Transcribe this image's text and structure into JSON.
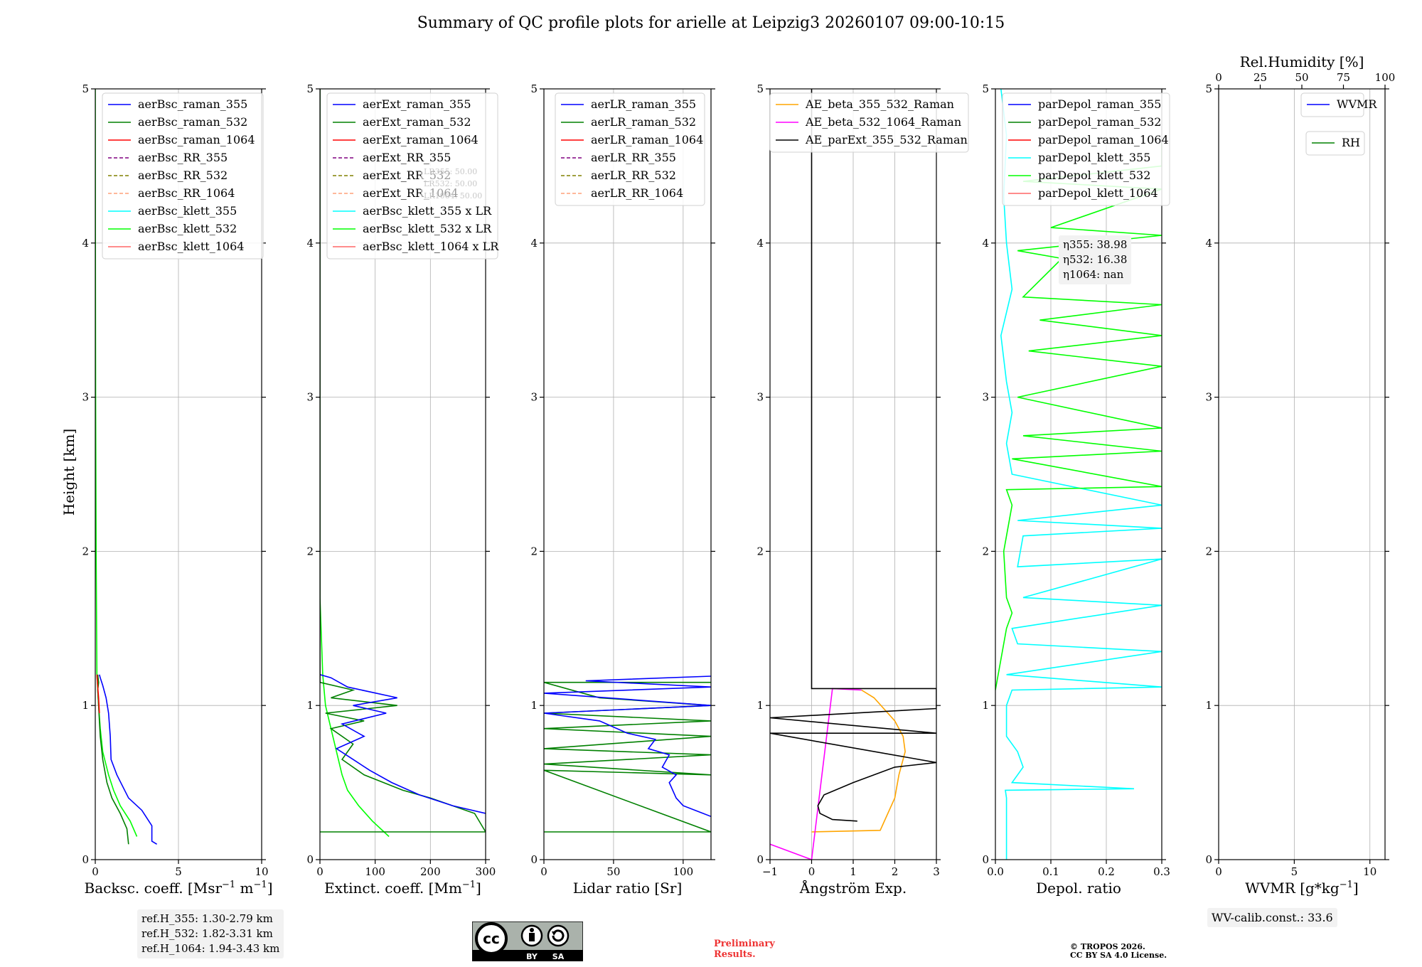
{
  "title": "Summary of QC profile plots for arielle at Leipzig3 20260107 09:00-10:15",
  "ylabel": "Height [km]",
  "chart_data": [
    {
      "id": "bsc",
      "type": "line",
      "xlabel_pre": "Backsc. coeff. [Msr",
      "xlabel_sup1": "−1",
      "xlabel_mid": " m",
      "xlabel_sup2": "−1",
      "xlabel_post": "]",
      "xlim": [
        0,
        10
      ],
      "ylim": [
        0,
        5
      ],
      "xticks": [
        0,
        5,
        10
      ],
      "yticks": [
        0,
        1,
        2,
        3,
        4,
        5
      ],
      "legend": [
        {
          "label": "aerBsc_raman_355",
          "color": "#0000ff",
          "dash": false
        },
        {
          "label": "aerBsc_raman_532",
          "color": "#008000",
          "dash": false
        },
        {
          "label": "aerBsc_raman_1064",
          "color": "#ff0000",
          "dash": false
        },
        {
          "label": "aerBsc_RR_355",
          "color": "#800080",
          "dash": true
        },
        {
          "label": "aerBsc_RR_532",
          "color": "#808000",
          "dash": true
        },
        {
          "label": "aerBsc_RR_1064",
          "color": "#ffa07a",
          "dash": true
        },
        {
          "label": "aerBsc_klett_355",
          "color": "#00ffff",
          "dash": false
        },
        {
          "label": "aerBsc_klett_532",
          "color": "#00ff00",
          "dash": false
        },
        {
          "label": "aerBsc_klett_1064",
          "color": "#ff6666",
          "dash": false
        }
      ],
      "series": [
        {
          "name": "aerBsc_klett_532",
          "color": "#00ff00",
          "x": [
            2.5,
            2.1,
            1.5,
            1.1,
            0.8,
            0.45,
            0.3,
            0.2,
            0.1,
            0.05,
            0.02,
            0.01,
            0.0
          ],
          "y": [
            0.15,
            0.25,
            0.35,
            0.45,
            0.55,
            0.7,
            0.85,
            1.0,
            1.2,
            2.0,
            3.0,
            4.0,
            5.0
          ]
        },
        {
          "name": "aerBsc_raman_532",
          "color": "#008000",
          "x": [
            2.0,
            1.9,
            1.5,
            1.0,
            0.7,
            0.45,
            0.3,
            0.25,
            0.2,
            0.15,
            0.2,
            0.15
          ],
          "y": [
            0.1,
            0.2,
            0.3,
            0.4,
            0.5,
            0.65,
            0.8,
            0.9,
            1.0,
            1.1,
            1.15,
            1.2
          ]
        },
        {
          "name": "aerBsc_raman_355",
          "color": "#0000ff",
          "x": [
            3.7,
            3.4,
            3.4,
            2.8,
            2.0,
            1.3,
            0.95,
            0.9,
            0.8,
            0.65,
            0.45,
            0.3,
            0.25
          ],
          "y": [
            0.1,
            0.12,
            0.22,
            0.32,
            0.4,
            0.55,
            0.65,
            0.8,
            0.95,
            1.05,
            1.13,
            1.18,
            1.2
          ]
        },
        {
          "name": "aerBsc_raman_1064",
          "color": "#ff0000",
          "x": [
            0.25,
            0.2,
            0.15,
            0.1
          ],
          "y": [
            0.95,
            1.05,
            1.12,
            1.2
          ]
        }
      ],
      "info": [
        "ref.H_355: 1.30-2.79 km",
        "ref.H_532: 1.82-3.31 km",
        "ref.H_1064: 1.94-3.43 km"
      ]
    },
    {
      "id": "ext",
      "type": "line",
      "xlabel_pre": "Extinct. coeff. [Mm",
      "xlabel_sup1": "−1",
      "xlabel_mid": "",
      "xlabel_sup2": "",
      "xlabel_post": "]",
      "xlim": [
        0,
        300
      ],
      "ylim": [
        0,
        5
      ],
      "xticks": [
        0,
        100,
        200,
        300
      ],
      "yticks": [
        0,
        1,
        2,
        3,
        4,
        5
      ],
      "legend": [
        {
          "label": "aerExt_raman_355",
          "color": "#0000ff",
          "dash": false
        },
        {
          "label": "aerExt_raman_532",
          "color": "#008000",
          "dash": false
        },
        {
          "label": "aerExt_raman_1064",
          "color": "#ff0000",
          "dash": false
        },
        {
          "label": "aerExt_RR_355",
          "color": "#800080",
          "dash": true
        },
        {
          "label": "aerExt_RR_532",
          "color": "#808000",
          "dash": true
        },
        {
          "label": "aerExt_RR_1064",
          "color": "#ffa07a",
          "dash": true
        },
        {
          "label": "aerBsc_klett_355 x LR",
          "color": "#00ffff",
          "dash": false
        },
        {
          "label": "aerBsc_klett_532 x LR",
          "color": "#00ff00",
          "dash": false
        },
        {
          "label": "aerBsc_klett_1064 x LR",
          "color": "#ff6666",
          "dash": false
        }
      ],
      "series": [
        {
          "name": "aerBsc_klett_532 x LR",
          "color": "#00ff00",
          "x": [
            125,
            95,
            70,
            50,
            40,
            30,
            20,
            10,
            5,
            2,
            0,
            0
          ],
          "y": [
            0.15,
            0.25,
            0.35,
            0.45,
            0.55,
            0.7,
            0.85,
            1.0,
            1.2,
            1.5,
            1.7,
            5.0
          ]
        },
        {
          "name": "aerExt_raman_532",
          "color": "#008000",
          "x": [
            0,
            300,
            280,
            200,
            150,
            80,
            40,
            60,
            20,
            80,
            10,
            140,
            20,
            60,
            0
          ],
          "y": [
            0.18,
            0.18,
            0.3,
            0.4,
            0.45,
            0.55,
            0.65,
            0.75,
            0.85,
            0.9,
            0.95,
            1.0,
            1.05,
            1.1,
            1.15
          ]
        },
        {
          "name": "aerExt_raman_355",
          "color": "#0000ff",
          "x": [
            300,
            240,
            180,
            130,
            90,
            60,
            30,
            80,
            40,
            120,
            60,
            140,
            50,
            20,
            0
          ],
          "y": [
            0.3,
            0.35,
            0.42,
            0.5,
            0.58,
            0.65,
            0.72,
            0.8,
            0.88,
            0.95,
            1.0,
            1.05,
            1.12,
            1.18,
            1.2
          ]
        },
        {
          "name": "aerExt_raman_1064",
          "color": "#000000",
          "x": [
            0,
            0
          ],
          "y": [
            1.15,
            5.0
          ]
        }
      ],
      "info": [
        "LR355: 50.00",
        "LR532: 50.00",
        "LR1064: 50.00"
      ]
    },
    {
      "id": "lr",
      "type": "line",
      "xlabel_pre": "Lidar ratio [Sr]",
      "xlabel_sup1": "",
      "xlabel_mid": "",
      "xlabel_sup2": "",
      "xlabel_post": "",
      "xlim": [
        0,
        120
      ],
      "ylim": [
        0,
        5
      ],
      "xticks": [
        0,
        50,
        100
      ],
      "yticks": [
        0,
        1,
        2,
        3,
        4,
        5
      ],
      "legend": [
        {
          "label": "aerLR_raman_355",
          "color": "#0000ff",
          "dash": false
        },
        {
          "label": "aerLR_raman_532",
          "color": "#008000",
          "dash": false
        },
        {
          "label": "aerLR_raman_1064",
          "color": "#ff0000",
          "dash": false
        },
        {
          "label": "aerLR_RR_355",
          "color": "#800080",
          "dash": true
        },
        {
          "label": "aerLR_RR_532",
          "color": "#808000",
          "dash": true
        },
        {
          "label": "aerLR_RR_1064",
          "color": "#ffa07a",
          "dash": true
        }
      ],
      "series": [
        {
          "name": "aerLR_raman_532",
          "color": "#008000",
          "x": [
            0,
            120,
            0,
            120,
            0,
            120,
            0,
            120,
            0,
            120,
            0,
            120,
            40,
            0,
            120
          ],
          "y": [
            0.18,
            0.18,
            0.58,
            0.55,
            0.62,
            0.68,
            0.72,
            0.8,
            0.85,
            0.9,
            0.95,
            1.0,
            1.05,
            1.15,
            1.15
          ]
        },
        {
          "name": "aerLR_raman_355",
          "color": "#0000ff",
          "x": [
            120,
            100,
            95,
            90,
            95,
            85,
            90,
            75,
            80,
            60,
            40,
            0,
            120,
            0,
            120,
            30,
            120
          ],
          "y": [
            0.28,
            0.35,
            0.4,
            0.5,
            0.55,
            0.6,
            0.68,
            0.72,
            0.78,
            0.82,
            0.9,
            0.95,
            1.0,
            1.08,
            1.12,
            1.16,
            1.19
          ]
        }
      ],
      "info": []
    },
    {
      "id": "ae",
      "type": "line",
      "xlabel_pre": "Ångström Exp.",
      "xlabel_sup1": "",
      "xlabel_mid": "",
      "xlabel_sup2": "",
      "xlabel_post": "",
      "xlim": [
        -1,
        3
      ],
      "ylim": [
        0,
        5
      ],
      "xticks": [
        -1,
        0,
        1,
        2,
        3
      ],
      "yticks": [
        0,
        1,
        2,
        3,
        4,
        5
      ],
      "legend": [
        {
          "label": "AE_beta_355_532_Raman",
          "color": "#ffa500",
          "dash": false
        },
        {
          "label": "AE_beta_532_1064_Raman",
          "color": "#ff00ff",
          "dash": false
        },
        {
          "label": "AE_parExt_355_532_Raman",
          "color": "#000000",
          "dash": false
        }
      ],
      "series": [
        {
          "name": "AE_beta_355_532_Raman",
          "color": "#ffa500",
          "x": [
            0,
            1.65,
            2.0,
            2.1,
            2.25,
            2.2,
            2.0,
            1.5,
            1.2
          ],
          "y": [
            0.18,
            0.19,
            0.4,
            0.55,
            0.7,
            0.8,
            0.9,
            1.05,
            1.1
          ]
        },
        {
          "name": "AE_beta_532_1064_Raman",
          "color": "#ff00ff",
          "x": [
            -1,
            0,
            0.5,
            1.2
          ],
          "y": [
            0.1,
            0,
            1.11,
            1.1
          ]
        },
        {
          "name": "AE_parExt_355_532_Raman",
          "color": "#000000",
          "x": [
            0,
            0,
            0,
            3,
            3,
            -1,
            3,
            -1,
            3,
            2,
            1,
            0.3,
            0.15,
            0.2,
            0.5,
            1.1
          ],
          "y": [
            5.0,
            1.12,
            1.11,
            1.11,
            0.98,
            0.92,
            0.82,
            0.82,
            0.63,
            0.6,
            0.5,
            0.42,
            0.35,
            0.3,
            0.26,
            0.25
          ]
        }
      ],
      "info": []
    },
    {
      "id": "depol",
      "type": "line",
      "xlabel_pre": "Depol. ratio",
      "xlabel_sup1": "",
      "xlabel_mid": "",
      "xlabel_sup2": "",
      "xlabel_post": "",
      "xlim": [
        0,
        0.3
      ],
      "ylim": [
        0,
        5
      ],
      "xticks": [
        0.0,
        0.1,
        0.2,
        0.3
      ],
      "yticks": [
        0,
        1,
        2,
        3,
        4,
        5
      ],
      "legend": [
        {
          "label": "parDepol_raman_355",
          "color": "#0000ff",
          "dash": false
        },
        {
          "label": "parDepol_raman_532",
          "color": "#008000",
          "dash": false
        },
        {
          "label": "parDepol_raman_1064",
          "color": "#ff0000",
          "dash": false
        },
        {
          "label": "parDepol_klett_355",
          "color": "#00ffff",
          "dash": false
        },
        {
          "label": "parDepol_klett_532",
          "color": "#00ff00",
          "dash": false
        },
        {
          "label": "parDepol_klett_1064",
          "color": "#ff6666",
          "dash": false
        }
      ],
      "series": [
        {
          "name": "parDepol_klett_355",
          "color": "#00ffff",
          "x": [
            0.02,
            0.02,
            0.018,
            0.25,
            0.03,
            0.04,
            0.05,
            0.04,
            0.02,
            0.02,
            0.03,
            0.3,
            0.02,
            0.3,
            0.04,
            0.03,
            0.3,
            0.05,
            0.3,
            0.04,
            0.05,
            0.3,
            0.04,
            0.3,
            0.03,
            0.02,
            0.03,
            0.02,
            0.01,
            0.03,
            0.02,
            0.015,
            0.02,
            0.01
          ],
          "y": [
            0.0,
            0.4,
            0.45,
            0.46,
            0.5,
            0.55,
            0.6,
            0.7,
            0.8,
            1.0,
            1.1,
            1.12,
            1.2,
            1.35,
            1.4,
            1.5,
            1.65,
            1.7,
            1.95,
            1.9,
            2.1,
            2.15,
            2.2,
            2.3,
            2.5,
            2.7,
            2.9,
            3.1,
            3.4,
            3.7,
            4.0,
            4.3,
            4.7,
            5.0
          ]
        },
        {
          "name": "parDepol_klett_532",
          "color": "#00ff00",
          "x": [
            0.0,
            0.01,
            0.02,
            0.03,
            0.02,
            0.015,
            0.02,
            0.03,
            0.02,
            0.3,
            0.03,
            0.3,
            0.05,
            0.3,
            0.04,
            0.3,
            0.06,
            0.3,
            0.08,
            0.3,
            0.05,
            0.12,
            0.04,
            0.3,
            0.1,
            0.3,
            0.05,
            0.3,
            0.3
          ],
          "y": [
            1.1,
            1.3,
            1.5,
            1.6,
            1.7,
            2.0,
            2.1,
            2.3,
            2.4,
            2.42,
            2.6,
            2.65,
            2.75,
            2.8,
            3.0,
            3.2,
            3.3,
            3.4,
            3.5,
            3.6,
            3.65,
            3.9,
            3.95,
            4.05,
            4.1,
            4.35,
            4.4,
            4.5,
            4.65
          ]
        }
      ],
      "info": [
        "η355: 38.98",
        "η532: 16.38",
        "η1064: nan"
      ]
    },
    {
      "id": "wv",
      "type": "line",
      "xlabel_pre": "WVMR [g*kg",
      "xlabel_sup1": "−1",
      "xlabel_mid": "",
      "xlabel_sup2": "",
      "xlabel_post": "]",
      "xlim": [
        0,
        11
      ],
      "ylim": [
        0,
        5
      ],
      "xticks": [
        0,
        5,
        10
      ],
      "yticks": [
        0,
        1,
        2,
        3,
        4,
        5
      ],
      "top_axis": {
        "label": "Rel.Humidity [%]",
        "lim": [
          0,
          100
        ],
        "ticks": [
          0,
          25,
          50,
          75,
          100
        ]
      },
      "legend": [
        {
          "label": "WVMR",
          "color": "#0000ff",
          "dash": false
        }
      ],
      "legend2": [
        {
          "label": "RH",
          "color": "#008000",
          "dash": false
        }
      ],
      "series": [],
      "info": [
        "WV-calib.const.: 33.6"
      ]
    }
  ],
  "footer": {
    "cc_text": "cc",
    "cc_by": "BY",
    "cc_sa": "SA",
    "preliminary": [
      "Preliminary",
      "Results."
    ],
    "copyright": [
      "© TROPOS 2026.",
      "CC BY SA 4.0 License."
    ]
  }
}
